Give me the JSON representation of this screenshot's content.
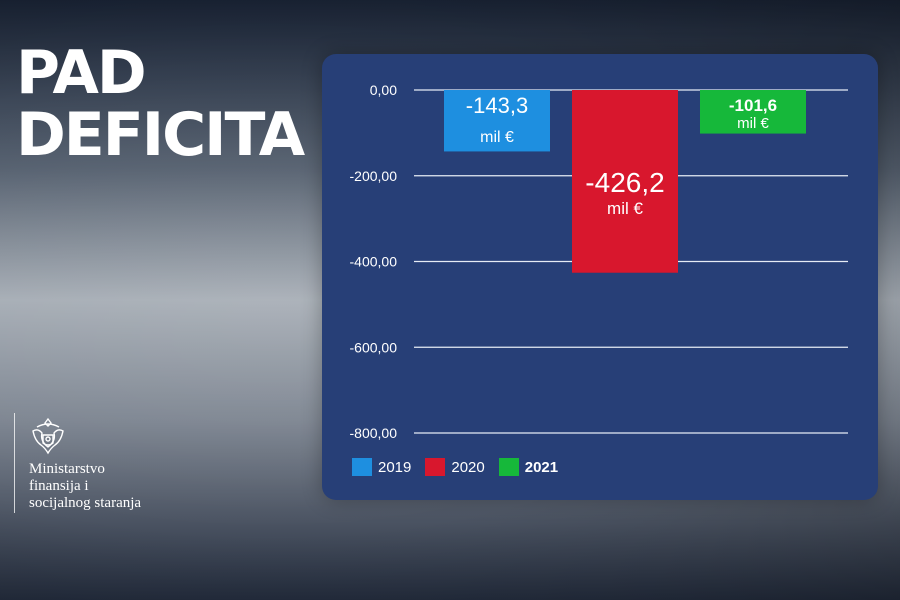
{
  "headline": {
    "line1": "PAD",
    "line2": "DEFICITA"
  },
  "ministry": {
    "line1": "Ministarstvo",
    "line2": "finansija i",
    "line3": "socijalnog staranja"
  },
  "colors": {
    "panel": "#273f77",
    "y2019": "#1e8fe0",
    "y2020": "#d8172d",
    "y2021": "#16b83a"
  },
  "chart_data": {
    "type": "bar",
    "categories": [
      "2019",
      "2020",
      "2021"
    ],
    "values": [
      -143.3,
      -426.2,
      -101.6
    ],
    "data_labels": [
      {
        "value": "-143,3",
        "unit": "mil €"
      },
      {
        "value": "-426,2",
        "unit": "mil €"
      },
      {
        "value": "-101,6",
        "unit": "mil €"
      }
    ],
    "colors": [
      "#1e8fe0",
      "#d8172d",
      "#16b83a"
    ],
    "ylim": [
      -800,
      0
    ],
    "yticks": [
      0,
      -200,
      -400,
      -600,
      -800
    ],
    "ytick_labels": [
      "0,00",
      "-200,00",
      "-400,00",
      "-600,00",
      "-800,00"
    ],
    "grid": true,
    "legend": {
      "position": "bottom-left",
      "entries": [
        {
          "label": "2019",
          "bold": false
        },
        {
          "label": "2020",
          "bold": false
        },
        {
          "label": "2021",
          "bold": true
        }
      ]
    }
  }
}
